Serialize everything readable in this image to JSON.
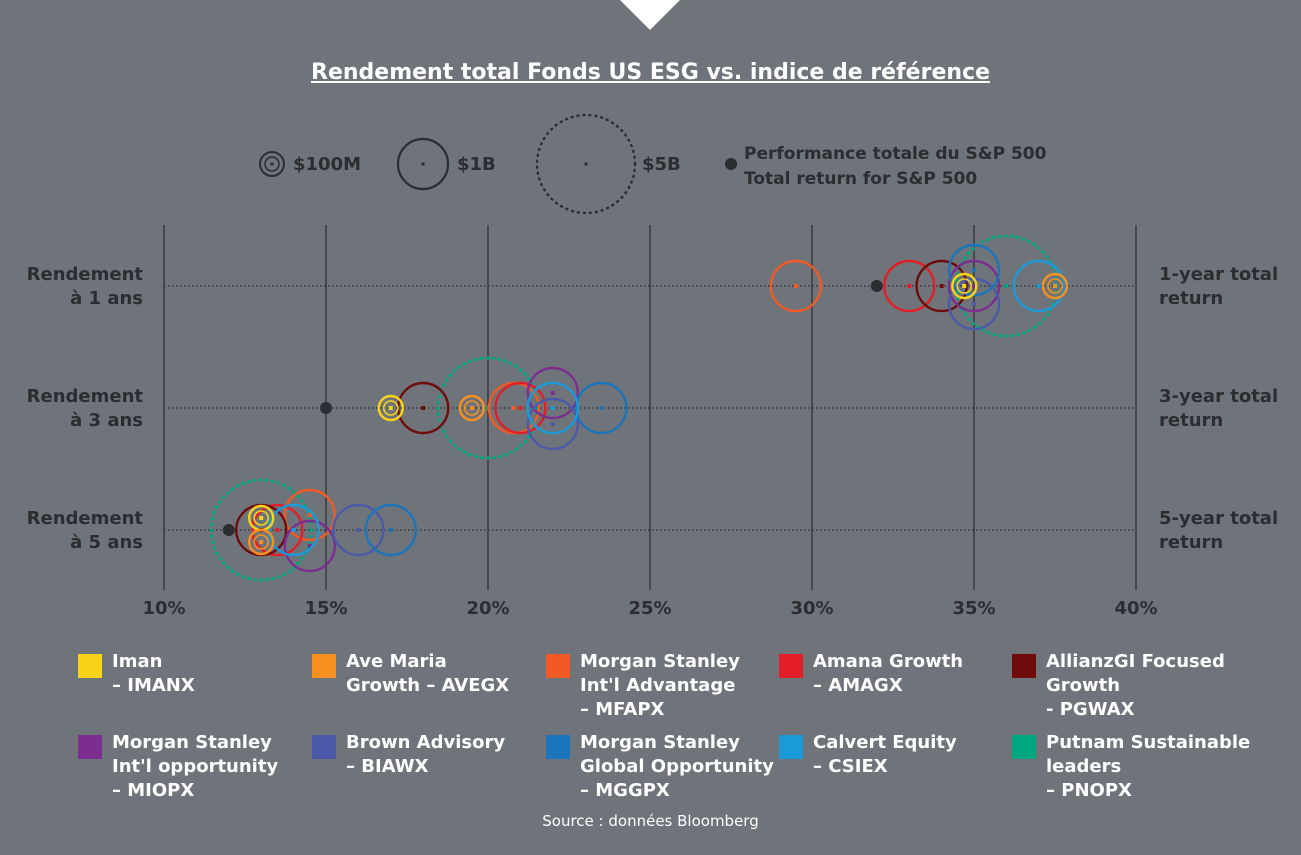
{
  "chart_data": {
    "type": "scatter",
    "title": "Rendement total Fonds US ESG vs. indice de référence",
    "size_legend": [
      "$100M",
      "$1B",
      "$5B"
    ],
    "sp_label_fr": "Performance totale du S&P 500",
    "sp_label_en": "Total return for S&P 500",
    "x_ticks": [
      "10%",
      "15%",
      "20%",
      "25%",
      "30%",
      "35%",
      "40%"
    ],
    "xlim": [
      10,
      40
    ],
    "rows": [
      {
        "label_fr_1": "Rendement",
        "label_fr_2": "à 1 ans",
        "label_en_1": "1-year total",
        "label_en_2": "return"
      },
      {
        "label_fr_1": "Rendement",
        "label_fr_2": "à 3 ans",
        "label_en_1": "3-year total",
        "label_en_2": "return"
      },
      {
        "label_fr_1": "Rendement",
        "label_fr_2": "à 5 ans",
        "label_en_1": "5-year total",
        "label_en_2": "return"
      }
    ],
    "sp500": [
      32.0,
      15.0,
      12.0
    ],
    "series": [
      {
        "line1": "Iman",
        "line2": "– IMANX",
        "line3": "",
        "color": "#f7d417",
        "size": "small",
        "values": [
          34.7,
          17.0,
          13.0
        ]
      },
      {
        "line1": "Ave Maria",
        "line2": "Growth – AVEGX",
        "line3": "",
        "color": "#f7901e",
        "size": "small",
        "values": [
          37.5,
          19.5,
          13.0
        ]
      },
      {
        "line1": "Morgan Stanley",
        "line2": "Int'l Advantage",
        "line3": "– MFAPX",
        "color": "#f15a24",
        "size": "medium",
        "values": [
          29.5,
          20.8,
          14.5
        ]
      },
      {
        "line1": "Amana Growth",
        "line2": "– AMAGX",
        "line3": "",
        "color": "#e41e26",
        "size": "medium",
        "values": [
          33.0,
          21.0,
          13.5
        ]
      },
      {
        "line1": "AllianzGI Focused",
        "line2": "Growth",
        "line3": "- PGWAX",
        "color": "#6e0c0c",
        "size": "medium",
        "values": [
          34.0,
          18.0,
          13.0
        ]
      },
      {
        "line1": "Morgan Stanley",
        "line2": "Int'l opportunity",
        "line3": "– MIOPX",
        "color": "#7b2d90",
        "size": "medium",
        "values": [
          35.0,
          22.0,
          14.5
        ]
      },
      {
        "line1": "Brown Advisory",
        "line2": "– BIAWX",
        "line3": "",
        "color": "#4a5aa8",
        "size": "medium",
        "values": [
          35.0,
          22.0,
          16.0
        ]
      },
      {
        "line1": "Morgan Stanley",
        "line2": "Global Opportunity",
        "line3": "– MGGPX",
        "color": "#1b75bc",
        "size": "medium",
        "values": [
          35.0,
          23.5,
          17.0
        ]
      },
      {
        "line1": "Calvert Equity",
        "line2": "– CSIEX",
        "line3": "",
        "color": "#1b9ad8",
        "size": "medium",
        "values": [
          37.0,
          22.0,
          14.0
        ]
      },
      {
        "line1": "Putnam Sustainable",
        "line2": "leaders",
        "line3": "– PNOPX",
        "color": "#00a882",
        "size": "large",
        "values": [
          36.0,
          20.0,
          13.0
        ]
      }
    ]
  },
  "source": "Source : données Bloomberg"
}
